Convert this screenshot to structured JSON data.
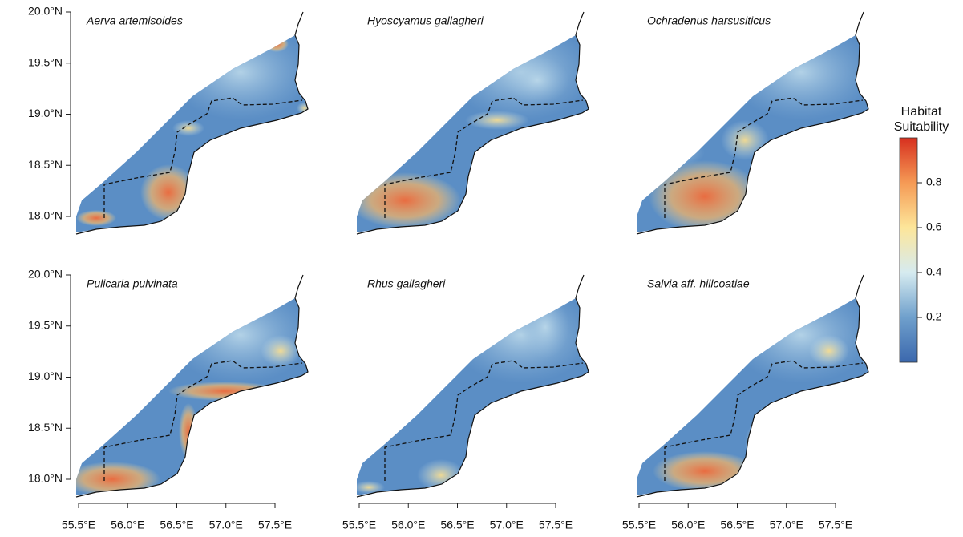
{
  "panels": [
    {
      "title": "Aerva artemisoides"
    },
    {
      "title": "Hyoscyamus gallagheri"
    },
    {
      "title": "Ochradenus harsusiticus"
    },
    {
      "title": "Pulicaria pulvinata"
    },
    {
      "title": "Rhus gallagheri"
    },
    {
      "title": "Salvia aff. hillcoatiae"
    }
  ],
  "latitude_ticks": [
    {
      "value": 20.0,
      "label": "20.0°N"
    },
    {
      "value": 19.5,
      "label": "19.5°N"
    },
    {
      "value": 19.0,
      "label": "19.0°N"
    },
    {
      "value": 18.5,
      "label": "18.5°N"
    },
    {
      "value": 18.0,
      "label": "18.0°N"
    }
  ],
  "longitude_ticks": [
    {
      "value": 55.5,
      "label": "55.5°E"
    },
    {
      "value": 56.0,
      "label": "56.0°E"
    },
    {
      "value": 56.5,
      "label": "56.5°E"
    },
    {
      "value": 57.0,
      "label": "57.0°E"
    },
    {
      "value": 57.5,
      "label": "57.5°E"
    }
  ],
  "legend": {
    "title_lines": [
      "Habitat",
      "Suitability"
    ],
    "lim": [
      0,
      1
    ],
    "ticks": [
      0.2,
      0.4,
      0.6,
      0.8
    ]
  }
}
